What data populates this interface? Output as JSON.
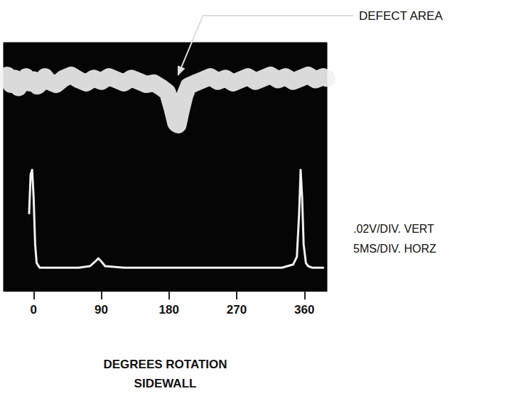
{
  "chart_data": {
    "type": "line",
    "x_label": "DEGREES ROTATION",
    "caption": "SIDEWALL",
    "scale_notes": [
      ".02V/DIV. VERT",
      "5MS/DIV. HORZ"
    ],
    "annotations": [
      {
        "text": "DEFECT AREA",
        "x": 192,
        "y": 0.107
      }
    ],
    "xlim": [
      -40,
      390
    ],
    "xticks": [
      0,
      90,
      180,
      270,
      360
    ],
    "ylim": [
      0,
      0.16
    ],
    "grid": false,
    "tick_labels": "x",
    "series": [
      {
        "color": "#f2f2f2",
        "line_style": "band",
        "x": [
          -40,
          -35,
          -30,
          -25,
          -20,
          -15,
          -10,
          -5,
          0,
          5,
          10,
          15,
          20,
          30,
          40,
          50,
          60,
          70,
          80,
          90,
          100,
          110,
          120,
          130,
          140,
          150,
          160,
          170,
          178,
          184,
          189,
          192,
          196,
          201,
          206,
          215,
          225,
          235,
          245,
          255,
          265,
          275,
          285,
          295,
          305,
          315,
          325,
          335,
          345,
          355,
          365,
          375,
          385,
          390
        ],
        "values": [
          0.136,
          0.139,
          0.133,
          0.137,
          0.131,
          0.135,
          0.138,
          0.134,
          0.136,
          0.132,
          0.134,
          0.138,
          0.135,
          0.133,
          0.137,
          0.139,
          0.136,
          0.134,
          0.137,
          0.135,
          0.138,
          0.136,
          0.134,
          0.137,
          0.135,
          0.133,
          0.134,
          0.131,
          0.128,
          0.118,
          0.108,
          0.107,
          0.116,
          0.126,
          0.132,
          0.134,
          0.136,
          0.138,
          0.135,
          0.137,
          0.134,
          0.136,
          0.138,
          0.135,
          0.137,
          0.139,
          0.136,
          0.138,
          0.135,
          0.137,
          0.139,
          0.136,
          0.138,
          0.137
        ]
      },
      {
        "color": "#f2f2f2",
        "line_style": "solid",
        "x": [
          -6,
          -4,
          -2,
          0,
          2,
          4,
          8,
          20,
          40,
          60,
          75,
          82,
          86,
          90,
          95,
          120,
          200,
          280,
          330,
          345,
          350,
          353,
          355,
          357,
          359,
          362,
          365,
          370,
          385
        ],
        "values": [
          0.05,
          0.075,
          0.078,
          0.06,
          0.03,
          0.018,
          0.015,
          0.015,
          0.015,
          0.015,
          0.016,
          0.019,
          0.021,
          0.019,
          0.016,
          0.015,
          0.015,
          0.015,
          0.015,
          0.017,
          0.022,
          0.05,
          0.078,
          0.06,
          0.03,
          0.018,
          0.016,
          0.015,
          0.015
        ]
      }
    ]
  }
}
